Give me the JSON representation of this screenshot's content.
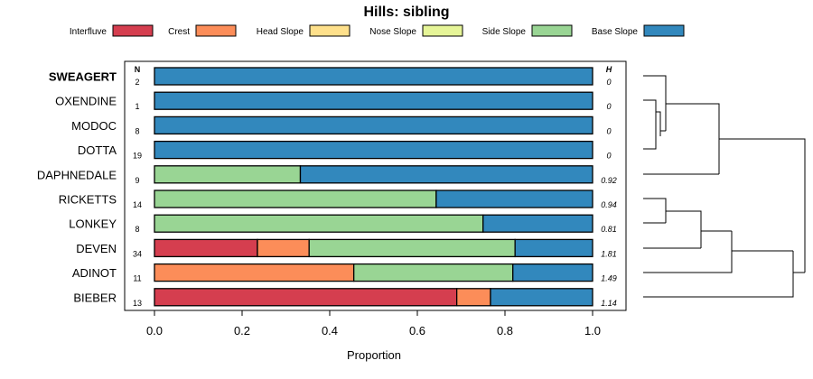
{
  "chart_data": {
    "type": "bar",
    "orientation": "horizontal",
    "stacked": true,
    "title": "Hills: sibling",
    "xlabel": "Proportion",
    "ylabel": "",
    "xlim": [
      0,
      1
    ],
    "x_ticks": [
      "0.0",
      "0.2",
      "0.4",
      "0.6",
      "0.8",
      "1.0"
    ],
    "n_header": "N",
    "h_header": "H",
    "legend": [
      {
        "name": "Interfluve",
        "color": "#d53e4f"
      },
      {
        "name": "Crest",
        "color": "#fc8d59"
      },
      {
        "name": "Head Slope",
        "color": "#fee08b"
      },
      {
        "name": "Nose Slope",
        "color": "#e6f598"
      },
      {
        "name": "Side Slope",
        "color": "#99d594"
      },
      {
        "name": "Base Slope",
        "color": "#3288bd"
      }
    ],
    "categories": [
      "SWEAGERT",
      "OXENDINE",
      "MODOC",
      "DOTTA",
      "DAPHNEDALE",
      "RICKETTS",
      "LONKEY",
      "DEVEN",
      "ADINOT",
      "BIEBER"
    ],
    "bold_category": "SWEAGERT",
    "n": [
      "2",
      "1",
      "8",
      "19",
      "9",
      "14",
      "8",
      "34",
      "11",
      "13"
    ],
    "h": [
      "0",
      "0",
      "0",
      "0",
      "0.92",
      "0.94",
      "0.81",
      "1.81",
      "1.49",
      "1.14"
    ],
    "series": [
      {
        "name": "Interfluve",
        "values": [
          0,
          0,
          0,
          0,
          0,
          0,
          0,
          0.235,
          0,
          0.69
        ]
      },
      {
        "name": "Crest",
        "values": [
          0,
          0,
          0,
          0,
          0,
          0,
          0,
          0.118,
          0.455,
          0.077
        ]
      },
      {
        "name": "Head Slope",
        "values": [
          0,
          0,
          0,
          0,
          0,
          0,
          0,
          0,
          0,
          0
        ]
      },
      {
        "name": "Nose Slope",
        "values": [
          0,
          0,
          0,
          0,
          0,
          0,
          0,
          0,
          0,
          0
        ]
      },
      {
        "name": "Side Slope",
        "values": [
          0,
          0,
          0,
          0,
          0.333,
          0.643,
          0.75,
          0.47,
          0.363,
          0
        ]
      },
      {
        "name": "Base Slope",
        "values": [
          1,
          1,
          1,
          1,
          0.667,
          0.357,
          0.25,
          0.177,
          0.182,
          0.233
        ]
      }
    ]
  }
}
